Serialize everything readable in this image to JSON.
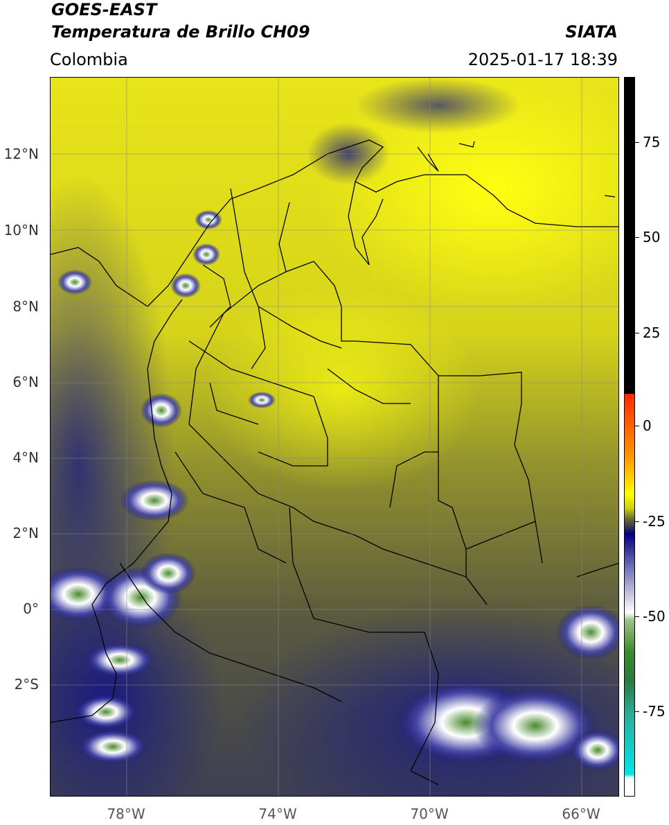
{
  "header": {
    "satellite": "GOES-EAST",
    "product": "Temperatura de Brillo CH09",
    "organization": "SIATA",
    "region": "Colombia",
    "datetime": "2025-01-17 18:39"
  },
  "map": {
    "lat_labels": [
      "12°N",
      "10°N",
      "8°N",
      "6°N",
      "4°N",
      "2°N",
      "0°",
      "2°S"
    ],
    "lon_labels": [
      "78°W",
      "74°W",
      "70°W",
      "66°W"
    ],
    "gridlines": true
  },
  "colorbar": {
    "ticks": [
      "75",
      "50",
      "25",
      "0",
      "-25",
      "-50",
      "-75"
    ],
    "colors": {
      "black": "#000000",
      "red": "#ff2a00",
      "orange": "#ff9900",
      "yellow": "#ffff00",
      "olive": "#666633",
      "navy": "#000080",
      "white": "#ffffff",
      "green": "#3a8a2a",
      "cyan": "#00e5e5"
    }
  }
}
